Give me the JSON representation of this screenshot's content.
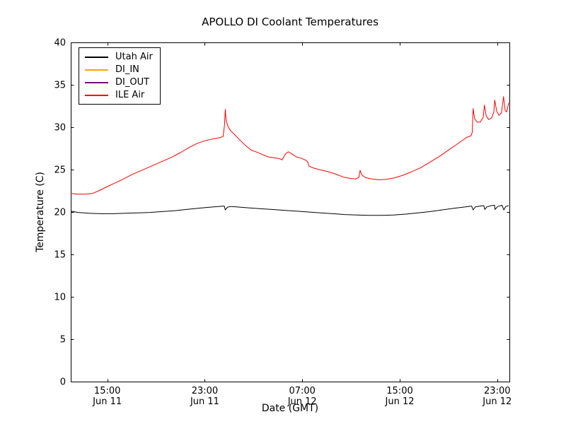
{
  "chart_data": {
    "type": "line",
    "title": "APOLLO DI Coolant Temperatures",
    "xlabel": "Date (GMT)",
    "ylabel": "Temperature (C)",
    "xlim_hours_from_jun11_1200_gmt": [
      0,
      36
    ],
    "ylim": [
      0,
      40
    ],
    "grid": false,
    "legend_position": "upper left",
    "y_ticks": [
      0,
      5,
      10,
      15,
      20,
      25,
      30,
      35,
      40
    ],
    "x_ticks": [
      {
        "t": 3,
        "time": "15:00",
        "date": "Jun 11"
      },
      {
        "t": 11,
        "time": "23:00",
        "date": "Jun 11"
      },
      {
        "t": 19,
        "time": "07:00",
        "date": "Jun 12"
      },
      {
        "t": 27,
        "time": "15:00",
        "date": "Jun 12"
      },
      {
        "t": 35,
        "time": "23:00",
        "date": "Jun 12"
      }
    ],
    "series": [
      {
        "name": "Utah Air",
        "color": "#000000",
        "points": [
          [
            0,
            20.1
          ],
          [
            0.6,
            19.95
          ],
          [
            1.5,
            19.85
          ],
          [
            2.5,
            19.8
          ],
          [
            3.5,
            19.8
          ],
          [
            4.5,
            19.85
          ],
          [
            5.5,
            19.9
          ],
          [
            6.5,
            19.95
          ],
          [
            7.5,
            20.05
          ],
          [
            8.5,
            20.15
          ],
          [
            9.5,
            20.3
          ],
          [
            10.5,
            20.45
          ],
          [
            11.3,
            20.55
          ],
          [
            12.1,
            20.65
          ],
          [
            12.6,
            20.7
          ],
          [
            12.68,
            20.25
          ],
          [
            12.85,
            20.55
          ],
          [
            13.1,
            20.65
          ],
          [
            13.6,
            20.6
          ],
          [
            14.5,
            20.5
          ],
          [
            15.5,
            20.4
          ],
          [
            16.5,
            20.3
          ],
          [
            17.5,
            20.2
          ],
          [
            18.5,
            20.1
          ],
          [
            19.5,
            20.0
          ],
          [
            20.5,
            19.9
          ],
          [
            21.5,
            19.8
          ],
          [
            22.5,
            19.7
          ],
          [
            23.5,
            19.65
          ],
          [
            24.5,
            19.6
          ],
          [
            25.5,
            19.6
          ],
          [
            26.5,
            19.65
          ],
          [
            27.5,
            19.75
          ],
          [
            28.5,
            19.9
          ],
          [
            29.5,
            20.05
          ],
          [
            30.5,
            20.25
          ],
          [
            31.5,
            20.45
          ],
          [
            32.4,
            20.6
          ],
          [
            32.9,
            20.7
          ],
          [
            33.02,
            20.25
          ],
          [
            33.2,
            20.6
          ],
          [
            33.6,
            20.7
          ],
          [
            33.9,
            20.75
          ],
          [
            33.98,
            20.3
          ],
          [
            34.15,
            20.6
          ],
          [
            34.5,
            20.75
          ],
          [
            34.78,
            20.8
          ],
          [
            34.82,
            20.3
          ],
          [
            35.05,
            20.65
          ],
          [
            35.4,
            20.8
          ],
          [
            35.54,
            20.25
          ],
          [
            35.7,
            20.65
          ],
          [
            35.95,
            20.75
          ]
        ]
      },
      {
        "name": "DI_IN",
        "color": "#ffa500",
        "points": []
      },
      {
        "name": "DI_OUT",
        "color": "#800080",
        "points": []
      },
      {
        "name": "ILE Air",
        "color": "#ff0000",
        "points": [
          [
            0,
            22.2
          ],
          [
            0.5,
            22.1
          ],
          [
            1.2,
            22.1
          ],
          [
            1.8,
            22.2
          ],
          [
            2.3,
            22.5
          ],
          [
            3,
            23.0
          ],
          [
            3.6,
            23.4
          ],
          [
            4.2,
            23.8
          ],
          [
            5,
            24.4
          ],
          [
            5.8,
            24.9
          ],
          [
            6.6,
            25.4
          ],
          [
            7.4,
            25.9
          ],
          [
            8.2,
            26.4
          ],
          [
            9,
            27.0
          ],
          [
            9.7,
            27.6
          ],
          [
            10.4,
            28.1
          ],
          [
            11,
            28.4
          ],
          [
            11.6,
            28.6
          ],
          [
            12.2,
            28.75
          ],
          [
            12.5,
            28.9
          ],
          [
            12.62,
            30.2
          ],
          [
            12.68,
            32.1
          ],
          [
            12.75,
            30.8
          ],
          [
            12.9,
            30.1
          ],
          [
            13.1,
            29.6
          ],
          [
            13.4,
            29.2
          ],
          [
            13.8,
            28.6
          ],
          [
            14.3,
            27.9
          ],
          [
            14.8,
            27.3
          ],
          [
            15.2,
            27.1
          ],
          [
            15.7,
            26.8
          ],
          [
            16.2,
            26.5
          ],
          [
            16.7,
            26.4
          ],
          [
            17.1,
            26.3
          ],
          [
            17.35,
            26.15
          ],
          [
            17.6,
            26.8
          ],
          [
            17.85,
            27.1
          ],
          [
            18.1,
            26.9
          ],
          [
            18.5,
            26.5
          ],
          [
            18.9,
            26.35
          ],
          [
            19.3,
            26.1
          ],
          [
            19.45,
            25.9
          ],
          [
            19.55,
            25.4
          ],
          [
            19.9,
            25.2
          ],
          [
            20.4,
            25.0
          ],
          [
            21,
            24.8
          ],
          [
            21.7,
            24.5
          ],
          [
            22.4,
            24.1
          ],
          [
            23,
            23.95
          ],
          [
            23.4,
            23.9
          ],
          [
            23.65,
            24.1
          ],
          [
            23.75,
            24.9
          ],
          [
            23.9,
            24.35
          ],
          [
            24.2,
            24.05
          ],
          [
            24.7,
            23.9
          ],
          [
            25.3,
            23.8
          ],
          [
            25.9,
            23.85
          ],
          [
            26.5,
            24.0
          ],
          [
            27.2,
            24.3
          ],
          [
            27.9,
            24.7
          ],
          [
            28.7,
            25.2
          ],
          [
            29.5,
            25.9
          ],
          [
            30.3,
            26.6
          ],
          [
            31.1,
            27.4
          ],
          [
            31.9,
            28.2
          ],
          [
            32.5,
            28.8
          ],
          [
            32.85,
            29.0
          ],
          [
            32.95,
            29.4
          ],
          [
            33.02,
            32.2
          ],
          [
            33.15,
            31.0
          ],
          [
            33.35,
            30.6
          ],
          [
            33.6,
            30.6
          ],
          [
            33.85,
            31.2
          ],
          [
            33.95,
            32.6
          ],
          [
            34.1,
            31.3
          ],
          [
            34.3,
            30.9
          ],
          [
            34.55,
            31.1
          ],
          [
            34.72,
            31.8
          ],
          [
            34.8,
            33.2
          ],
          [
            34.95,
            31.9
          ],
          [
            35.15,
            31.4
          ],
          [
            35.35,
            31.7
          ],
          [
            35.52,
            33.6
          ],
          [
            35.65,
            32.0
          ],
          [
            35.78,
            31.8
          ],
          [
            35.95,
            32.9
          ]
        ]
      }
    ]
  }
}
